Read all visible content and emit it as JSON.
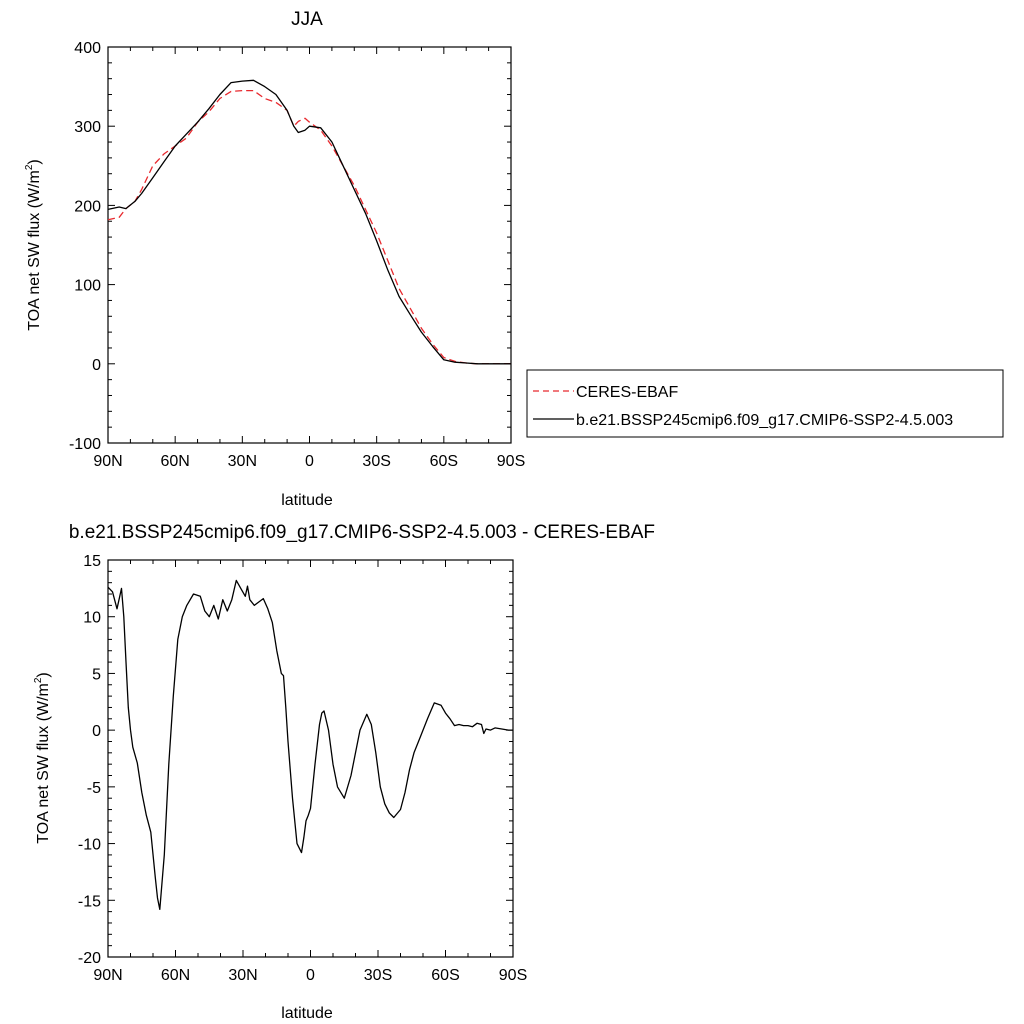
{
  "chart_data": [
    {
      "type": "line",
      "title": "JJA",
      "xlabel": "latitude",
      "ylabel": "TOA net SW flux (W/m²)",
      "ylabel_main": "TOA net SW flux (W/m",
      "ylabel_sup": "2",
      "ylabel_close": ")",
      "xlim": [
        90,
        -90
      ],
      "ylim": [
        -100,
        400
      ],
      "yticks": [
        -100,
        0,
        100,
        200,
        300,
        400
      ],
      "xticks": [
        {
          "value": 90,
          "label": "90N"
        },
        {
          "value": 60,
          "label": "60N"
        },
        {
          "value": 30,
          "label": "30N"
        },
        {
          "value": 0,
          "label": "0"
        },
        {
          "value": -30,
          "label": "30S"
        },
        {
          "value": -60,
          "label": "60S"
        },
        {
          "value": -90,
          "label": "90S"
        }
      ],
      "legend_placement": "right",
      "series": [
        {
          "name": "CERES-EBAF",
          "color": "#e8292e",
          "dashed": true,
          "x": [
            90,
            85,
            82,
            78,
            75,
            70,
            65,
            60,
            55,
            50,
            45,
            40,
            35,
            30,
            25,
            20,
            15,
            10,
            7,
            5,
            2,
            0,
            -5,
            -10,
            -15,
            -20,
            -25,
            -30,
            -35,
            -40,
            -45,
            -50,
            -55,
            -60,
            -65,
            -70,
            -75,
            -80,
            -85,
            -90
          ],
          "y": [
            182,
            185,
            196,
            205,
            220,
            250,
            265,
            275,
            285,
            305,
            318,
            335,
            344,
            345,
            345,
            335,
            330,
            320,
            300,
            306,
            310,
            305,
            295,
            275,
            250,
            225,
            195,
            165,
            130,
            95,
            70,
            45,
            25,
            8,
            3,
            1,
            0,
            0,
            0,
            0
          ]
        },
        {
          "name": "b.e21.BSSP245cmip6.f09_g17.CMIP6-SSP2-4.5.003",
          "color": "#000000",
          "dashed": false,
          "x": [
            90,
            85,
            82,
            78,
            75,
            70,
            65,
            60,
            55,
            50,
            45,
            40,
            35,
            30,
            25,
            20,
            15,
            10,
            7,
            5,
            2,
            0,
            -5,
            -10,
            -15,
            -20,
            -25,
            -30,
            -35,
            -40,
            -45,
            -50,
            -55,
            -60,
            -65,
            -70,
            -75,
            -80,
            -85,
            -90
          ],
          "y": [
            195,
            198,
            196,
            205,
            215,
            235,
            255,
            275,
            290,
            305,
            322,
            340,
            355,
            357,
            358,
            350,
            340,
            320,
            300,
            292,
            295,
            300,
            298,
            280,
            250,
            220,
            190,
            155,
            118,
            85,
            62,
            40,
            22,
            5,
            2,
            1,
            0,
            0,
            0,
            0
          ]
        }
      ]
    },
    {
      "type": "line",
      "title": "b.e21.BSSP245cmip6.f09_g17.CMIP6-SSP2-4.5.003 - CERES-EBAF",
      "xlabel": "latitude",
      "ylabel": "TOA net SW flux (W/m²)",
      "ylabel_main": "TOA net SW flux (W/m",
      "ylabel_sup": "2",
      "ylabel_close": ")",
      "xlim": [
        90,
        -90
      ],
      "ylim": [
        -20,
        15
      ],
      "yticks": [
        -20,
        -15,
        -10,
        -5,
        0,
        5,
        10,
        15
      ],
      "xticks": [
        {
          "value": 90,
          "label": "90N"
        },
        {
          "value": 60,
          "label": "60N"
        },
        {
          "value": 30,
          "label": "30N"
        },
        {
          "value": 0,
          "label": "0"
        },
        {
          "value": -30,
          "label": "30S"
        },
        {
          "value": -60,
          "label": "60S"
        },
        {
          "value": -90,
          "label": "90S"
        }
      ],
      "series": [
        {
          "color": "#000000",
          "dashed": false,
          "x": [
            90,
            88,
            86,
            84,
            83,
            82,
            81,
            80,
            79,
            77,
            75,
            73,
            71,
            69,
            68,
            67,
            65,
            63,
            61,
            59,
            57,
            55,
            52,
            49,
            47,
            45,
            43,
            41,
            39,
            37,
            35,
            33,
            31,
            29,
            28,
            27,
            25,
            23,
            21,
            19,
            17,
            15,
            13,
            12,
            11,
            10,
            8,
            6,
            4,
            3,
            2,
            1,
            0,
            -2,
            -4,
            -5,
            -6,
            -8,
            -10,
            -12,
            -15,
            -18,
            -22,
            -25,
            -27,
            -29,
            -31,
            -33,
            -35,
            -37,
            -40,
            -42,
            -44,
            -46,
            -49,
            -52,
            -55,
            -58,
            -60,
            -62,
            -64,
            -66,
            -68,
            -70,
            -72,
            -74,
            -76,
            -77,
            -78,
            -80,
            -82,
            -85,
            -88,
            -90
          ],
          "y": [
            12.6,
            12.2,
            10.7,
            12.5,
            10.0,
            6.0,
            2.0,
            0.0,
            -1.5,
            -2.9,
            -5.5,
            -7.5,
            -9.0,
            -13.0,
            -14.8,
            -15.8,
            -11.0,
            -3.0,
            3.0,
            8.0,
            10.0,
            11.0,
            12.0,
            11.8,
            10.5,
            10.0,
            11.0,
            9.8,
            11.5,
            10.5,
            11.5,
            13.2,
            12.5,
            11.8,
            12.7,
            11.5,
            11.0,
            11.3,
            11.6,
            10.7,
            9.5,
            7.0,
            5.0,
            4.8,
            2.0,
            -1.0,
            -6.0,
            -10.0,
            -10.8,
            -9.5,
            -8.0,
            -7.5,
            -6.9,
            -3.0,
            0.5,
            1.5,
            1.7,
            0.0,
            -3.0,
            -5.0,
            -6.0,
            -4.0,
            0.0,
            1.4,
            0.5,
            -2.0,
            -5.0,
            -6.5,
            -7.3,
            -7.7,
            -7.0,
            -5.5,
            -3.5,
            -2.0,
            -0.5,
            1.0,
            2.4,
            2.2,
            1.5,
            1.0,
            0.4,
            0.5,
            0.4,
            0.4,
            0.3,
            0.6,
            0.5,
            -0.3,
            0.1,
            0.0,
            0.2,
            0.1,
            0.0,
            0.0
          ]
        }
      ]
    }
  ]
}
